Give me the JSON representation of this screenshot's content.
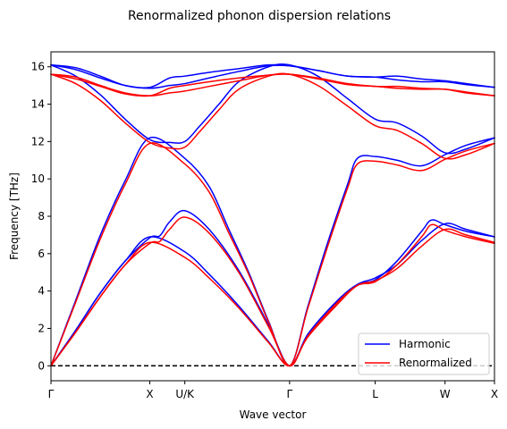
{
  "chart_data": {
    "type": "line",
    "title": "Renormalized phonon dispersion relations",
    "xlabel": "Wave vector",
    "ylabel": "Frequency [THz]",
    "ylim": [
      -0.8,
      16.8
    ],
    "yticks": [
      0,
      2,
      4,
      6,
      8,
      10,
      12,
      14,
      16
    ],
    "high_symmetry_points": [
      {
        "label": "Γ",
        "x": 0.0
      },
      {
        "label": "X",
        "x": 1.0
      },
      {
        "label": "U/K",
        "x": 1.354
      },
      {
        "label": "Γ",
        "x": 2.414
      },
      {
        "label": "L",
        "x": 3.28
      },
      {
        "label": "W",
        "x": 3.987
      },
      {
        "label": "X",
        "x": 4.487
      }
    ],
    "zero_line": {
      "y": 0,
      "style": "dashed",
      "color": "#000000"
    },
    "legend": {
      "position": "lower-right"
    },
    "series": [
      {
        "name": "Harmonic",
        "color": "#0000ff",
        "bands": [
          [
            [
              0,
              0
            ],
            [
              0.25,
              1.9
            ],
            [
              0.5,
              3.9
            ],
            [
              0.75,
              5.6
            ],
            [
              1.0,
              6.85
            ],
            [
              1.1,
              6.95
            ],
            [
              1.2,
              7.7
            ],
            [
              1.354,
              8.3
            ],
            [
              1.6,
              7.3
            ],
            [
              1.9,
              5.1
            ],
            [
              2.2,
              2.2
            ],
            [
              2.414,
              0
            ],
            [
              2.6,
              1.7
            ],
            [
              2.9,
              3.5
            ],
            [
              3.1,
              4.35
            ],
            [
              3.28,
              4.6
            ],
            [
              3.5,
              5.6
            ],
            [
              3.75,
              7.2
            ],
            [
              3.85,
              7.8
            ],
            [
              3.987,
              7.55
            ],
            [
              4.2,
              7.2
            ],
            [
              4.487,
              6.9
            ]
          ],
          [
            [
              0,
              0
            ],
            [
              0.25,
              1.9
            ],
            [
              0.5,
              3.9
            ],
            [
              0.75,
              5.6
            ],
            [
              1.0,
              6.9
            ],
            [
              1.354,
              6.1
            ],
            [
              1.6,
              4.9
            ],
            [
              1.9,
              3.2
            ],
            [
              2.2,
              1.3
            ],
            [
              2.414,
              0
            ],
            [
              2.6,
              1.6
            ],
            [
              2.9,
              3.4
            ],
            [
              3.1,
              4.35
            ],
            [
              3.28,
              4.7
            ],
            [
              3.5,
              5.4
            ],
            [
              3.75,
              6.7
            ],
            [
              3.987,
              7.6
            ],
            [
              4.2,
              7.3
            ],
            [
              4.487,
              6.9
            ]
          ],
          [
            [
              0,
              0
            ],
            [
              0.25,
              3.5
            ],
            [
              0.5,
              7.0
            ],
            [
              0.75,
              9.9
            ],
            [
              1.0,
              12.2
            ],
            [
              1.354,
              11.1
            ],
            [
              1.6,
              9.6
            ],
            [
              1.8,
              7.3
            ],
            [
              2.0,
              5.0
            ],
            [
              2.2,
              2.4
            ],
            [
              2.414,
              0
            ],
            [
              2.6,
              3.2
            ],
            [
              2.8,
              6.6
            ],
            [
              3.0,
              9.7
            ],
            [
              3.1,
              11.1
            ],
            [
              3.28,
              11.2
            ],
            [
              3.5,
              11.0
            ],
            [
              3.75,
              10.7
            ],
            [
              3.987,
              11.3
            ],
            [
              4.2,
              11.8
            ],
            [
              4.487,
              12.2
            ]
          ],
          [
            [
              0,
              16.1
            ],
            [
              0.25,
              15.95
            ],
            [
              0.5,
              15.5
            ],
            [
              0.75,
              15.0
            ],
            [
              1.0,
              14.9
            ],
            [
              1.2,
              15.4
            ],
            [
              1.354,
              15.5
            ],
            [
              1.6,
              15.7
            ],
            [
              1.9,
              15.9
            ],
            [
              2.2,
              16.1
            ],
            [
              2.414,
              16.05
            ],
            [
              2.7,
              15.8
            ],
            [
              3.0,
              15.5
            ],
            [
              3.28,
              15.45
            ],
            [
              3.5,
              15.5
            ],
            [
              3.75,
              15.35
            ],
            [
              3.987,
              15.25
            ],
            [
              4.2,
              15.1
            ],
            [
              4.487,
              14.9
            ]
          ],
          [
            [
              0,
              16.1
            ],
            [
              0.25,
              15.85
            ],
            [
              0.5,
              15.4
            ],
            [
              0.75,
              15.0
            ],
            [
              1.0,
              14.85
            ],
            [
              1.2,
              15.0
            ],
            [
              1.354,
              15.1
            ],
            [
              1.6,
              15.4
            ],
            [
              1.9,
              15.75
            ],
            [
              2.2,
              16.05
            ],
            [
              2.414,
              16.05
            ],
            [
              2.7,
              15.8
            ],
            [
              3.0,
              15.5
            ],
            [
              3.28,
              15.45
            ],
            [
              3.5,
              15.3
            ],
            [
              3.75,
              15.2
            ],
            [
              3.987,
              15.2
            ],
            [
              4.2,
              15.05
            ],
            [
              4.487,
              14.9
            ]
          ],
          [
            [
              0,
              16.1
            ],
            [
              0.25,
              15.5
            ],
            [
              0.5,
              14.5
            ],
            [
              0.75,
              13.2
            ],
            [
              1.0,
              12.1
            ],
            [
              1.2,
              11.95
            ],
            [
              1.354,
              12.0
            ],
            [
              1.5,
              12.8
            ],
            [
              1.7,
              14.0
            ],
            [
              1.9,
              15.2
            ],
            [
              2.2,
              16.0
            ],
            [
              2.414,
              16.1
            ],
            [
              2.7,
              15.5
            ],
            [
              3.0,
              14.3
            ],
            [
              3.28,
              13.2
            ],
            [
              3.5,
              13.0
            ],
            [
              3.75,
              12.3
            ],
            [
              3.987,
              11.4
            ],
            [
              4.2,
              11.6
            ],
            [
              4.487,
              12.2
            ]
          ]
        ]
      },
      {
        "name": "Renormalized",
        "color": "#ff0000",
        "bands": [
          [
            [
              0,
              0
            ],
            [
              0.25,
              1.8
            ],
            [
              0.5,
              3.7
            ],
            [
              0.75,
              5.4
            ],
            [
              1.0,
              6.55
            ],
            [
              1.1,
              6.65
            ],
            [
              1.2,
              7.3
            ],
            [
              1.354,
              7.95
            ],
            [
              1.6,
              7.1
            ],
            [
              1.9,
              5.0
            ],
            [
              2.2,
              2.1
            ],
            [
              2.414,
              0
            ],
            [
              2.6,
              1.6
            ],
            [
              2.9,
              3.4
            ],
            [
              3.1,
              4.3
            ],
            [
              3.28,
              4.5
            ],
            [
              3.5,
              5.4
            ],
            [
              3.75,
              6.9
            ],
            [
              3.85,
              7.55
            ],
            [
              3.987,
              7.25
            ],
            [
              4.2,
              6.9
            ],
            [
              4.487,
              6.55
            ]
          ],
          [
            [
              0,
              0
            ],
            [
              0.25,
              1.8
            ],
            [
              0.5,
              3.7
            ],
            [
              0.75,
              5.4
            ],
            [
              1.0,
              6.6
            ],
            [
              1.354,
              5.8
            ],
            [
              1.6,
              4.7
            ],
            [
              1.9,
              3.1
            ],
            [
              2.2,
              1.25
            ],
            [
              2.414,
              0
            ],
            [
              2.6,
              1.55
            ],
            [
              2.9,
              3.3
            ],
            [
              3.1,
              4.3
            ],
            [
              3.28,
              4.55
            ],
            [
              3.5,
              5.2
            ],
            [
              3.75,
              6.4
            ],
            [
              3.987,
              7.3
            ],
            [
              4.2,
              7.0
            ],
            [
              4.487,
              6.6
            ]
          ],
          [
            [
              0,
              0
            ],
            [
              0.25,
              3.4
            ],
            [
              0.5,
              6.8
            ],
            [
              0.75,
              9.7
            ],
            [
              1.0,
              11.9
            ],
            [
              1.354,
              10.8
            ],
            [
              1.6,
              9.3
            ],
            [
              1.8,
              7.1
            ],
            [
              2.0,
              4.9
            ],
            [
              2.2,
              2.35
            ],
            [
              2.414,
              0
            ],
            [
              2.6,
              3.1
            ],
            [
              2.8,
              6.4
            ],
            [
              3.0,
              9.5
            ],
            [
              3.1,
              10.8
            ],
            [
              3.28,
              10.95
            ],
            [
              3.5,
              10.75
            ],
            [
              3.75,
              10.45
            ],
            [
              3.987,
              11.05
            ],
            [
              4.2,
              11.5
            ],
            [
              4.487,
              11.9
            ]
          ],
          [
            [
              0,
              15.6
            ],
            [
              0.25,
              15.45
            ],
            [
              0.5,
              15.0
            ],
            [
              0.75,
              14.6
            ],
            [
              1.0,
              14.45
            ],
            [
              1.2,
              14.6
            ],
            [
              1.354,
              14.7
            ],
            [
              1.6,
              14.95
            ],
            [
              1.9,
              15.25
            ],
            [
              2.2,
              15.55
            ],
            [
              2.414,
              15.6
            ],
            [
              2.7,
              15.4
            ],
            [
              3.0,
              15.1
            ],
            [
              3.28,
              14.95
            ],
            [
              3.5,
              14.95
            ],
            [
              3.75,
              14.85
            ],
            [
              3.987,
              14.8
            ],
            [
              4.2,
              14.65
            ],
            [
              4.487,
              14.45
            ]
          ],
          [
            [
              0,
              15.6
            ],
            [
              0.25,
              15.35
            ],
            [
              0.5,
              14.95
            ],
            [
              0.75,
              14.55
            ],
            [
              1.0,
              14.45
            ],
            [
              1.2,
              14.85
            ],
            [
              1.354,
              15.0
            ],
            [
              1.6,
              15.2
            ],
            [
              1.9,
              15.4
            ],
            [
              2.2,
              15.55
            ],
            [
              2.414,
              15.6
            ],
            [
              2.7,
              15.35
            ],
            [
              3.0,
              15.05
            ],
            [
              3.28,
              14.95
            ],
            [
              3.5,
              14.85
            ],
            [
              3.75,
              14.8
            ],
            [
              3.987,
              14.8
            ],
            [
              4.2,
              14.6
            ],
            [
              4.487,
              14.45
            ]
          ],
          [
            [
              0,
              15.6
            ],
            [
              0.25,
              15.1
            ],
            [
              0.5,
              14.2
            ],
            [
              0.75,
              13.0
            ],
            [
              1.0,
              11.95
            ],
            [
              1.2,
              11.65
            ],
            [
              1.354,
              11.7
            ],
            [
              1.5,
              12.5
            ],
            [
              1.7,
              13.7
            ],
            [
              1.9,
              14.8
            ],
            [
              2.2,
              15.5
            ],
            [
              2.414,
              15.6
            ],
            [
              2.7,
              15.0
            ],
            [
              3.0,
              13.9
            ],
            [
              3.28,
              12.85
            ],
            [
              3.5,
              12.6
            ],
            [
              3.75,
              11.9
            ],
            [
              3.987,
              11.1
            ],
            [
              4.2,
              11.3
            ],
            [
              4.487,
              11.9
            ]
          ]
        ]
      }
    ]
  }
}
